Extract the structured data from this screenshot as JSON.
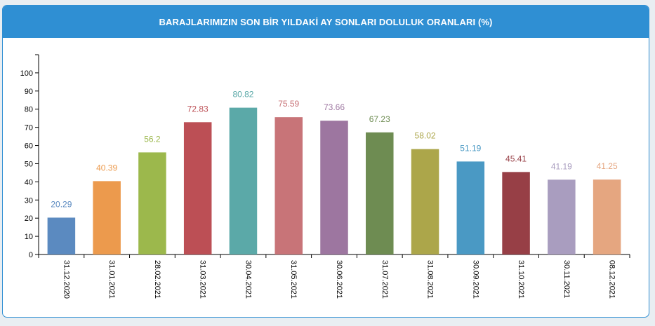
{
  "panel": {
    "title": "BARAJLARIMIZIN SON BİR YILDAKİ AY SONLARI DOLULUK ORANLARI (%)"
  },
  "chart_data": {
    "type": "bar",
    "title": "BARAJLARIMIZIN SON BİR YILDAKİ AY SONLARI DOLULUK ORANLARI (%)",
    "xlabel": "",
    "ylabel": "",
    "ylim": [
      0,
      110
    ],
    "yticks": [
      0,
      10,
      20,
      30,
      40,
      50,
      60,
      70,
      80,
      90,
      100
    ],
    "grid": false,
    "legend": "none",
    "categories": [
      "31.12.2020",
      "31.01.2021",
      "28.02.2021",
      "31.03.2021",
      "30.04.2021",
      "31.05.2021",
      "30.06.2021",
      "31.07.2021",
      "31.08.2021",
      "30.09.2021",
      "31.10.2021",
      "30.11.2021",
      "08.12.2021"
    ],
    "values": [
      20.29,
      40.39,
      56.2,
      72.83,
      80.82,
      75.59,
      73.66,
      67.23,
      58.02,
      51.19,
      45.41,
      41.19,
      41.25
    ],
    "value_labels": [
      "20.29",
      "40.39",
      "56.2",
      "72.83",
      "80.82",
      "75.59",
      "73.66",
      "67.23",
      "58.02",
      "51.19",
      "45.41",
      "41.19",
      "41.25"
    ],
    "colors": [
      "#5b8ac0",
      "#ec9a4d",
      "#9cb84c",
      "#bc4f55",
      "#5ba9a8",
      "#c87478",
      "#9d76a0",
      "#6e8c52",
      "#aca64a",
      "#4a99c4",
      "#973f46",
      "#a99dbf",
      "#e5a680"
    ]
  }
}
